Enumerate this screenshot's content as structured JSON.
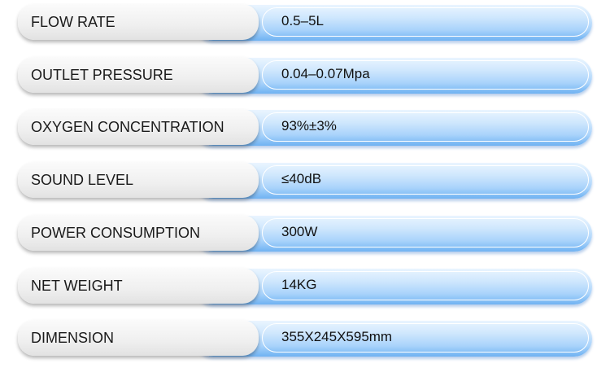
{
  "specs": [
    {
      "label": "FLOW RATE",
      "value": "0.5–5L"
    },
    {
      "label": "OUTLET PRESSURE",
      "value": "0.04–0.07Mpa"
    },
    {
      "label": "OXYGEN CONCENTRATION",
      "value": "93%±3%"
    },
    {
      "label": "SOUND LEVEL",
      "value": "≤40dB"
    },
    {
      "label": "POWER CONSUMPTION",
      "value": "300W"
    },
    {
      "label": "NET WEIGHT",
      "value": "14KG"
    },
    {
      "label": "DIMENSION",
      "value": "355X245X595mm"
    }
  ],
  "colors": {
    "accent": "#8fc4f7",
    "label_bg": "#efefef"
  }
}
